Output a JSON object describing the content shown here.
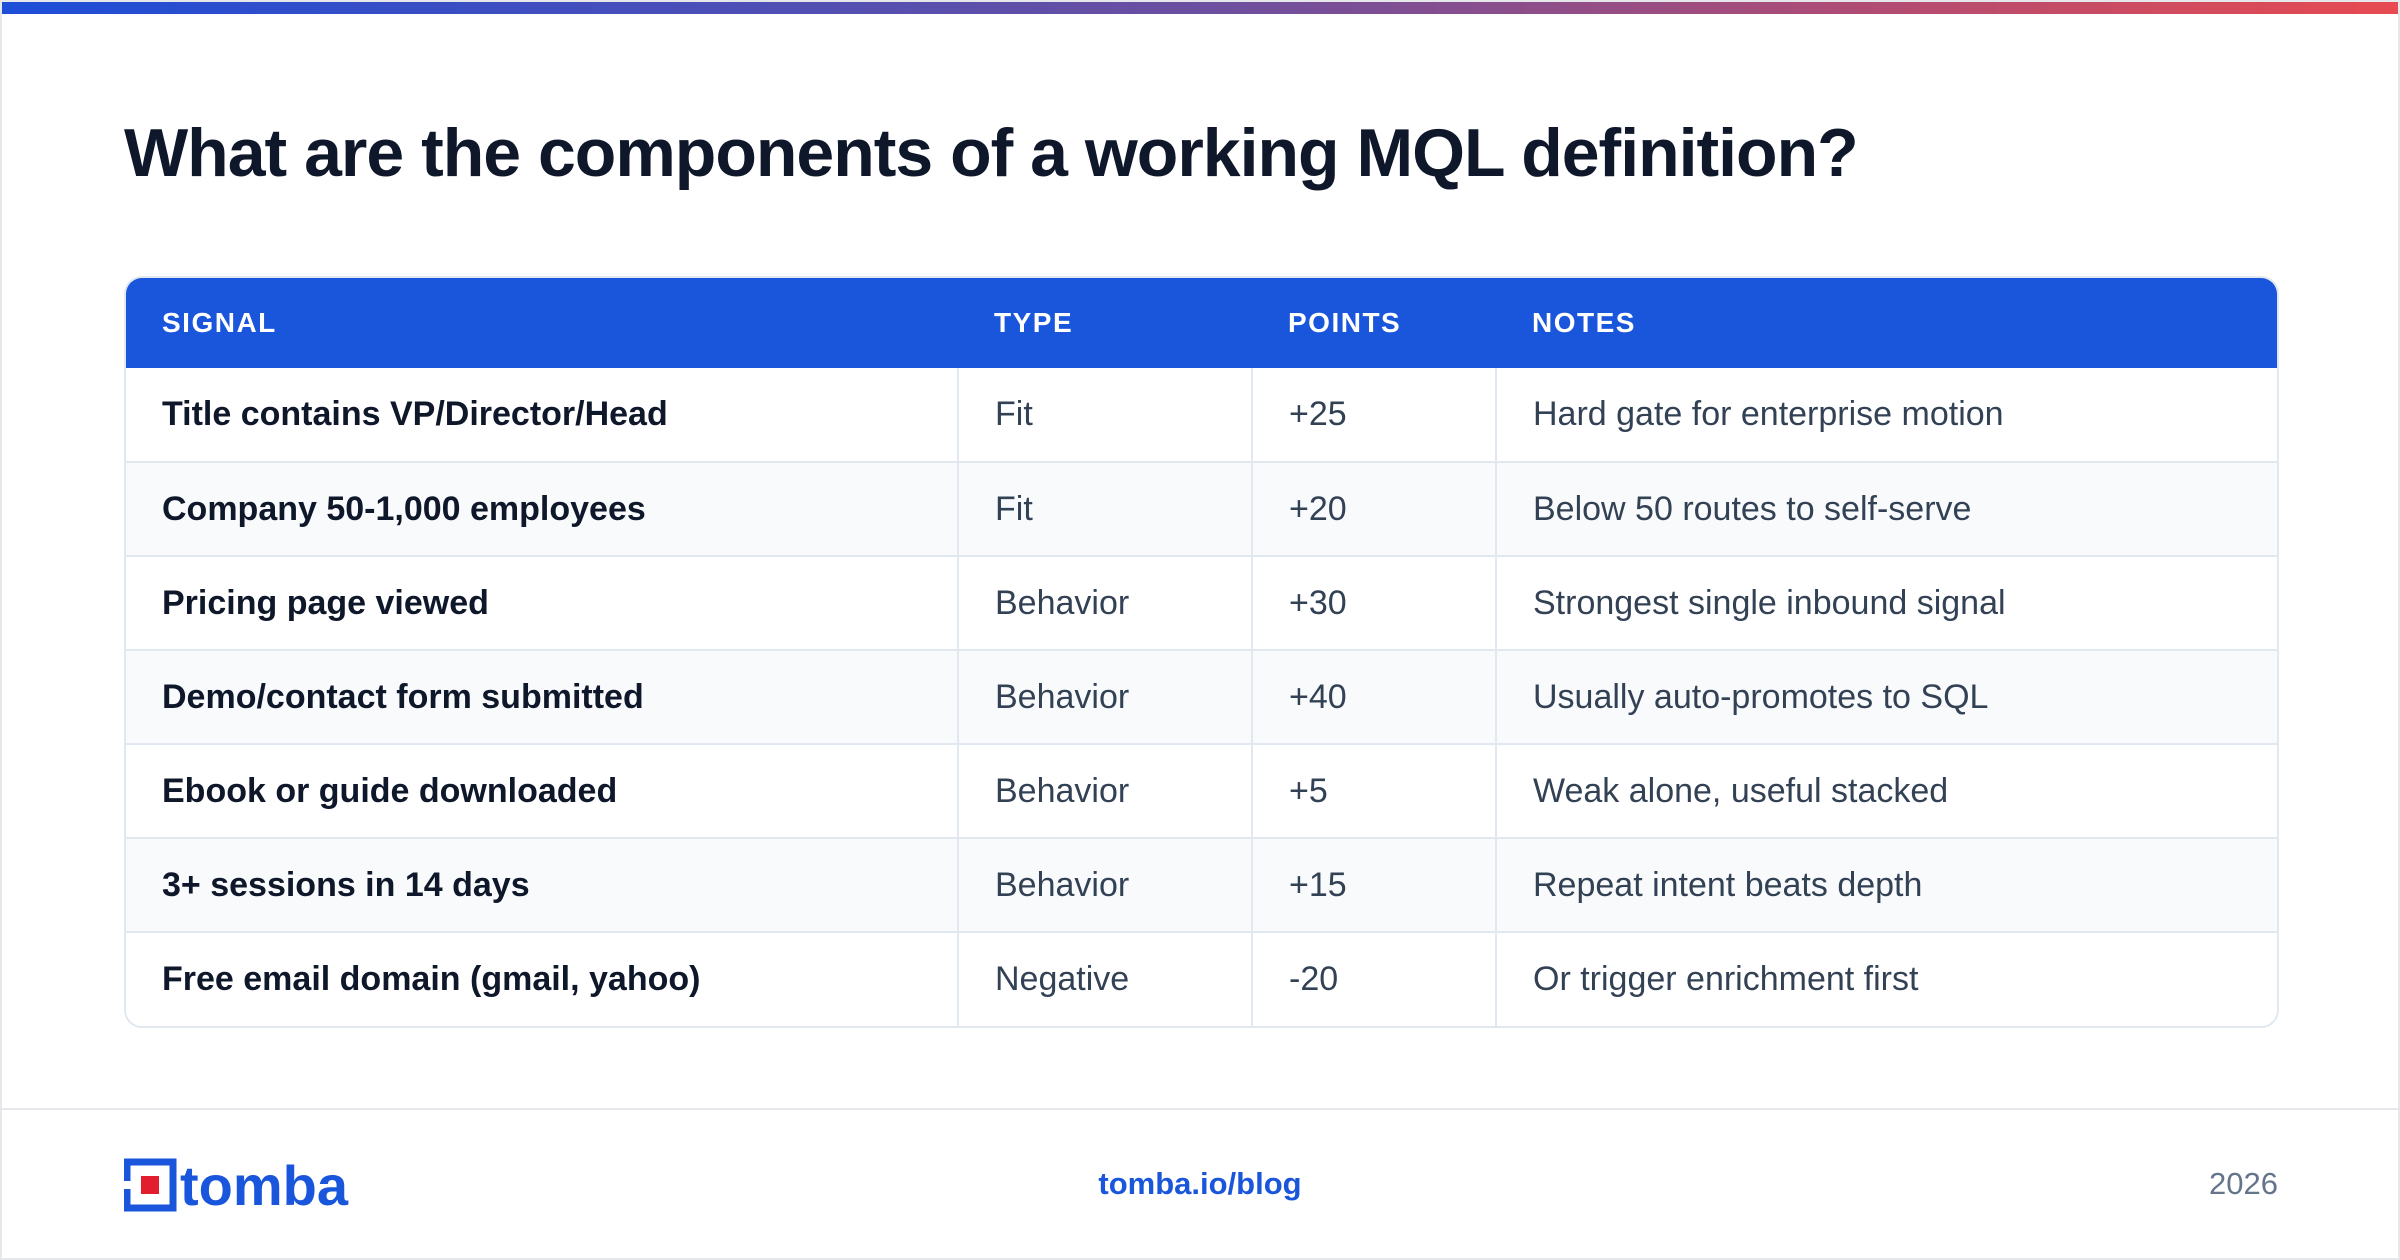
{
  "colors": {
    "accent": "#1a56db",
    "gradient_start": "#1d4ed8",
    "gradient_end": "#e74a50",
    "logo_red": "#e11d2e"
  },
  "title": "What are the components of a working MQL definition?",
  "table": {
    "headers": [
      "SIGNAL",
      "TYPE",
      "POINTS",
      "NOTES"
    ],
    "rows": [
      {
        "signal": "Title contains VP/Director/Head",
        "type": "Fit",
        "points": "+25",
        "notes": "Hard gate for enterprise motion"
      },
      {
        "signal": "Company 50-1,000 employees",
        "type": "Fit",
        "points": "+20",
        "notes": "Below 50 routes to self-serve"
      },
      {
        "signal": "Pricing page viewed",
        "type": "Behavior",
        "points": "+30",
        "notes": "Strongest single inbound signal"
      },
      {
        "signal": "Demo/contact form submitted",
        "type": "Behavior",
        "points": "+40",
        "notes": "Usually auto-promotes to SQL"
      },
      {
        "signal": "Ebook or guide downloaded",
        "type": "Behavior",
        "points": "+5",
        "notes": "Weak alone, useful stacked"
      },
      {
        "signal": "3+ sessions in 14 days",
        "type": "Behavior",
        "points": "+15",
        "notes": "Repeat intent beats depth"
      },
      {
        "signal": "Free email domain (gmail, yahoo)",
        "type": "Negative",
        "points": "-20",
        "notes": "Or trigger enrichment first"
      }
    ]
  },
  "footer": {
    "logo_icon": "tomba-logo-icon",
    "logo_text": "tomba",
    "link": "tomba.io/blog",
    "year": "2026"
  }
}
